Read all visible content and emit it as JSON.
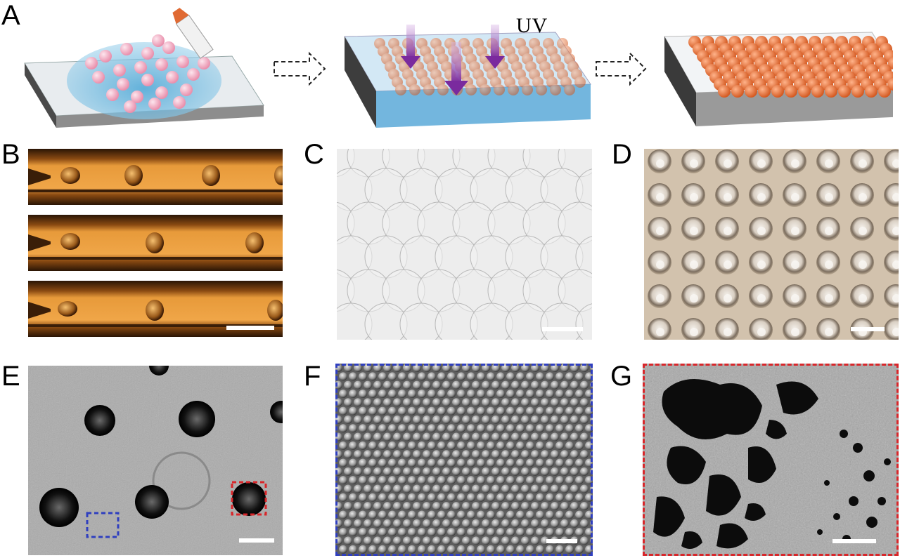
{
  "panels": {
    "a": {
      "label": "A",
      "uv_text": "UV"
    },
    "b": {
      "label": "B"
    },
    "c": {
      "label": "C"
    },
    "d": {
      "label": "D"
    },
    "e": {
      "label": "E"
    },
    "f": {
      "label": "F"
    },
    "g": {
      "label": "G"
    }
  },
  "colors": {
    "sphere_orange": "#e8743f",
    "sphere_pink": "#f2b8c8",
    "droplet_blue": "#6fb9dc",
    "uv_arrow": "#8a3aa8",
    "box_blue": "#2f3fbf",
    "box_red": "#d8262a"
  }
}
